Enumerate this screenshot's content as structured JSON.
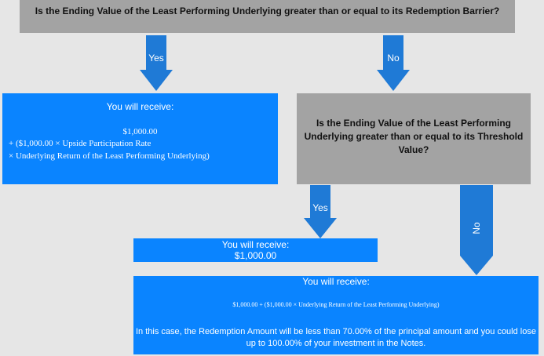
{
  "question1": "Is the Ending Value of the Least Performing Underlying greater than or equal to its Redemption Barrier?",
  "question2": "Is the Ending Value of the Least Performing Underlying greater than or equal to its Threshold Value?",
  "arrows": {
    "yes1": "Yes",
    "no1": "No",
    "yes2": "Yes",
    "no2": "No"
  },
  "result1": {
    "heading": "You will receive:",
    "amount": "$1,000.00",
    "line1": "+ ($1,000.00 × Upside Participation Rate",
    "line2": "× Underlying Return of the Least Performing Underlying)"
  },
  "result2": {
    "heading": "You will receive:",
    "amount": "$1,000.00"
  },
  "result3": {
    "heading": "You will receive:",
    "formula": "$1,000.00 + ($1,000.00 × Underlying Return of the Least Performing Underlying)",
    "note": "In this case, the Redemption Amount will be less than 70.00% of the principal amount and you could lose up to 100.00% of your investment in the Notes."
  },
  "colors": {
    "background": "#e6e6e6",
    "question_box": "#a3a3a3",
    "result_box": "#0a84ff",
    "arrow": "#1f7ad6"
  }
}
